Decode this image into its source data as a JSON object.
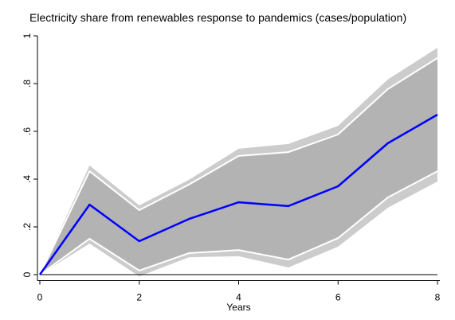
{
  "chart_data": {
    "type": "line",
    "title": "Electricity share from renewables response to pandemics (cases/population)",
    "x_label": "Years",
    "x": [
      0,
      1,
      2,
      3,
      4,
      5,
      6,
      7,
      8
    ],
    "bands": [
      {
        "color": "#cccccc",
        "lower": [
          0,
          0.13,
          -0.007,
          0.073,
          0.077,
          0.03,
          0.117,
          0.28,
          0.39
        ],
        "upper": [
          0,
          0.457,
          0.29,
          0.397,
          0.527,
          0.547,
          0.623,
          0.817,
          0.95
        ]
      },
      {
        "color": "#b3b3b3",
        "edge_color": "#ffffff",
        "lower": [
          0,
          0.15,
          0.017,
          0.09,
          0.103,
          0.063,
          0.153,
          0.323,
          0.433
        ],
        "upper": [
          0,
          0.433,
          0.27,
          0.377,
          0.497,
          0.513,
          0.587,
          0.777,
          0.907
        ]
      }
    ],
    "series": [
      {
        "color": "#0000ff",
        "values": [
          0,
          0.293,
          0.14,
          0.233,
          0.303,
          0.287,
          0.37,
          0.55,
          0.67
        ]
      }
    ],
    "xlim": [
      0,
      8
    ],
    "xticks": [
      0,
      2,
      4,
      6,
      8
    ],
    "ylim": [
      -0.025,
      1
    ],
    "yticks": [
      0,
      {
        "value": 0.2,
        "label": ".2"
      },
      {
        "value": 0.4,
        "label": ".4"
      },
      {
        "value": 0.6,
        "label": ".6"
      },
      {
        "value": 0.8,
        "label": ".8"
      },
      1
    ],
    "reference_line": 0
  }
}
